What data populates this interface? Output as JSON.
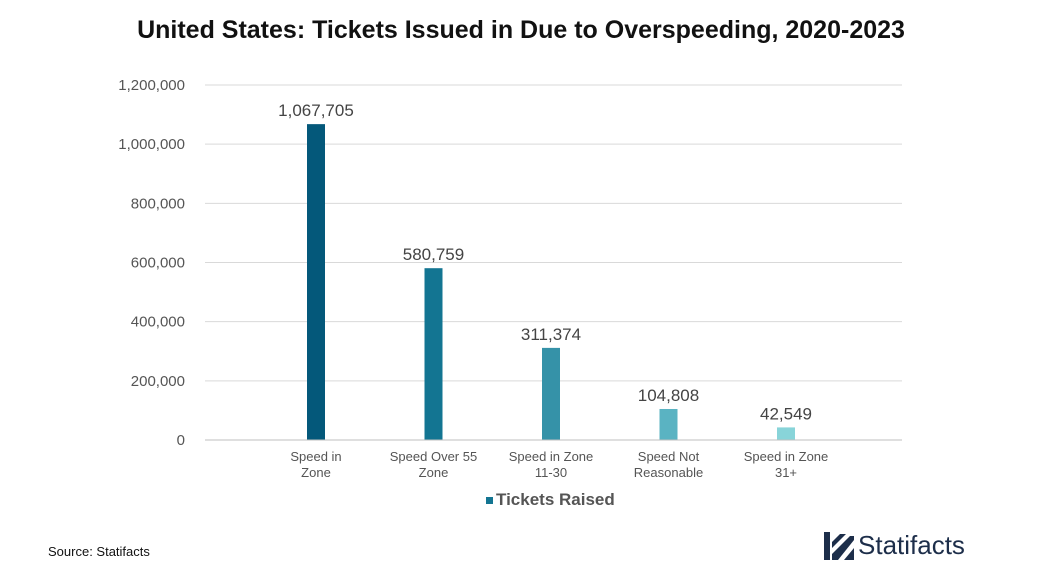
{
  "chart_data": {
    "type": "bar",
    "title": "United States: Tickets Issued in Due to Overspeeding, 2020-2023",
    "categories": [
      [
        "Speed in",
        "Zone"
      ],
      [
        "Speed Over 55",
        "Zone"
      ],
      [
        "Speed in Zone",
        "11-30"
      ],
      [
        "Speed Not",
        "Reasonable"
      ],
      [
        "Speed in Zone",
        "31+"
      ]
    ],
    "series": [
      {
        "name": "Tickets Raised",
        "values": [
          1067705,
          580759,
          311374,
          104808,
          42549
        ],
        "labels": [
          "1,067,705",
          "580,759",
          "311,374",
          "104,808",
          "42,549"
        ],
        "colors": [
          "#04587a",
          "#137592",
          "#3592a8",
          "#5ab3c2",
          "#88d4d9"
        ]
      }
    ],
    "yticks": [
      0,
      200000,
      400000,
      600000,
      800000,
      1000000,
      1200000
    ],
    "ytick_labels": [
      "0",
      "200,000",
      "400,000",
      "600,000",
      "800,000",
      "1,000,000",
      "1,200,000"
    ],
    "ylim": [
      0,
      1200000
    ],
    "grid": true,
    "legend_position": "bottom"
  },
  "legend": {
    "label": "Tickets Raised",
    "color": "#137592"
  },
  "footer": {
    "source": "Source: Statifacts",
    "brand": "Statifacts"
  },
  "colors": {
    "grid": "#d9d9d9",
    "axis": "#bfbfbf",
    "brand": "#1d2e4a"
  }
}
